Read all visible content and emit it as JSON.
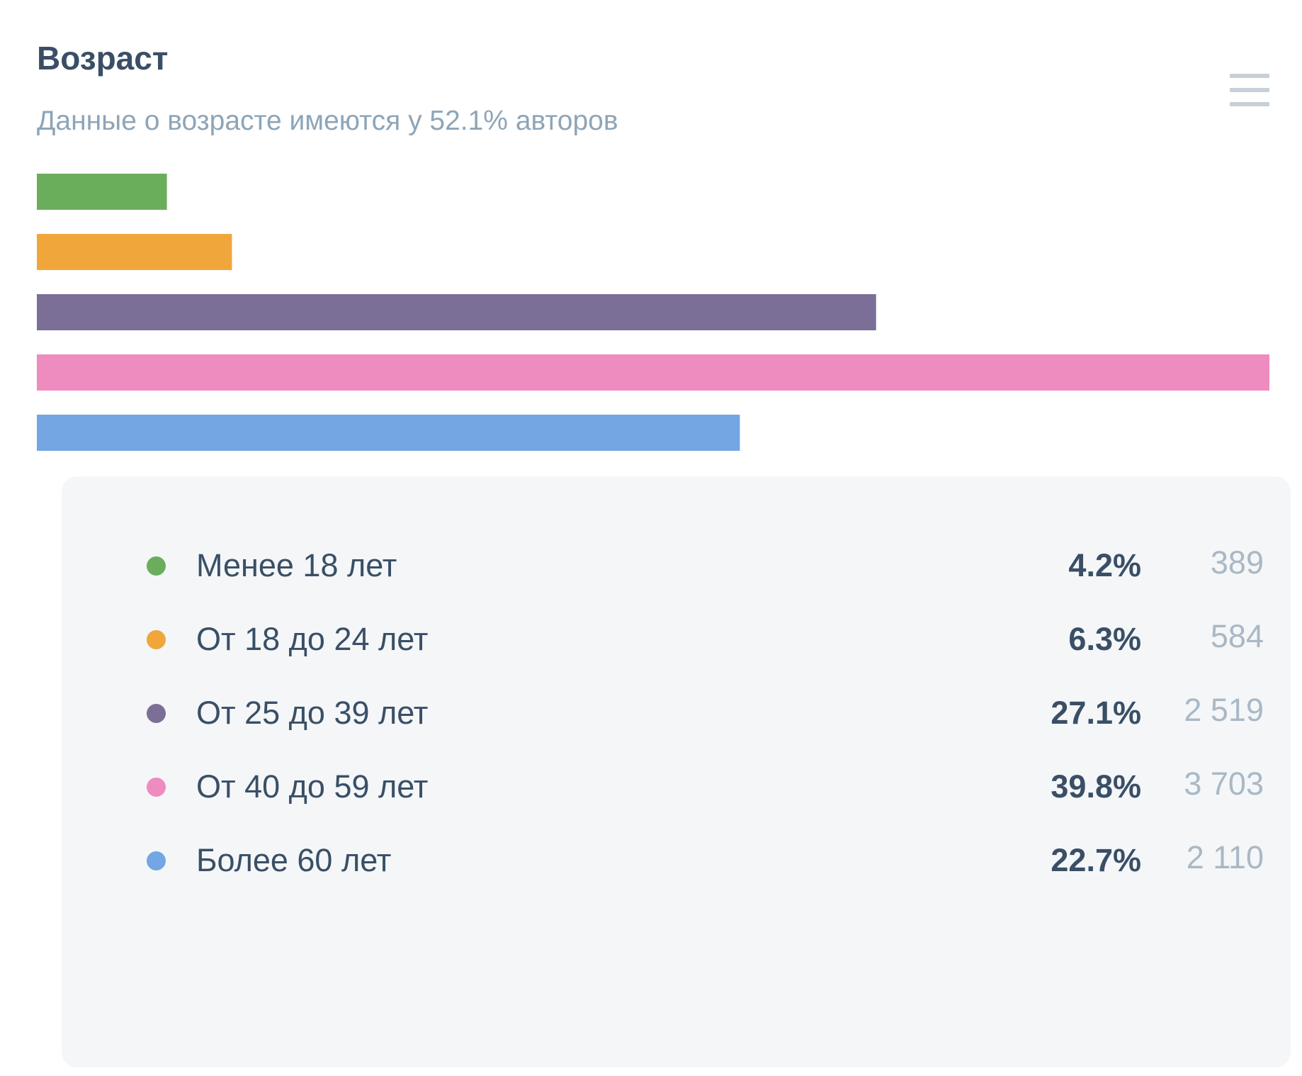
{
  "header": {
    "title": "Возраст",
    "subtitle": "Данные о возрасте имеются у 52.1% авторов",
    "menu_icon": "hamburger-icon"
  },
  "chart_data": {
    "type": "bar",
    "orientation": "horizontal",
    "categories": [
      "Менее 18 лет",
      "От 18 до 24 лет",
      "От 25 до 39 лет",
      "От 40 до 59 лет",
      "Более 60 лет"
    ],
    "values": [
      4.2,
      6.3,
      27.1,
      39.8,
      22.7
    ],
    "counts": [
      "389",
      "584",
      "2 519",
      "3 703",
      "2 110"
    ],
    "colors": [
      "#6aae5c",
      "#f0a63b",
      "#7b6f98",
      "#ee8bbf",
      "#73a6e2"
    ],
    "title": "Возраст",
    "subtitle": "Данные о возрасте имеются у 52.1% авторов",
    "xlabel": "",
    "ylabel": "",
    "grid": false,
    "legend": "bottom"
  },
  "legend": {
    "items": [
      {
        "label": "Менее 18 лет",
        "percent": "4.2%",
        "count": "389",
        "color": "#6aae5c"
      },
      {
        "label": "От 18 до 24 лет",
        "percent": "6.3%",
        "count": "584",
        "color": "#f0a63b"
      },
      {
        "label": "От 25 до 39 лет",
        "percent": "27.1%",
        "count": "2 519",
        "color": "#7b6f98"
      },
      {
        "label": "От 40 до 59 лет",
        "percent": "39.8%",
        "count": "3 703",
        "color": "#ee8bbf"
      },
      {
        "label": "Более 60 лет",
        "percent": "22.7%",
        "count": "2 110",
        "color": "#73a6e2"
      }
    ]
  }
}
